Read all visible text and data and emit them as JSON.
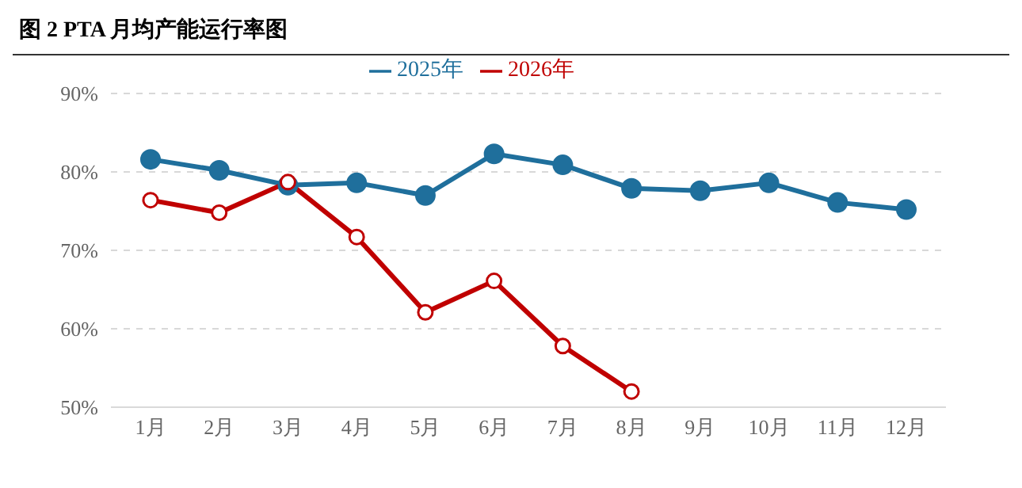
{
  "chart_data": {
    "type": "line",
    "title": "图 2 PTA 月均产能运行率图",
    "categories": [
      "1月",
      "2月",
      "3月",
      "4月",
      "5月",
      "6月",
      "7月",
      "8月",
      "9月",
      "10月",
      "11月",
      "12月"
    ],
    "series": [
      {
        "name": "2025年",
        "color": "#1f6f9c",
        "marker": "circle",
        "values": [
          81.6,
          80.2,
          78.3,
          78.6,
          77.0,
          82.3,
          80.9,
          77.9,
          77.6,
          78.6,
          76.1,
          75.2
        ]
      },
      {
        "name": "2026年",
        "color": "#c00000",
        "marker": "circle",
        "values": [
          76.4,
          74.8,
          78.7,
          71.7,
          62.1,
          66.1,
          57.8,
          52.0,
          null,
          null,
          null,
          null
        ]
      }
    ],
    "ylim": [
      50,
      90
    ],
    "yticks": [
      {
        "value": 50,
        "label": "50%"
      },
      {
        "value": 60,
        "label": "60%"
      },
      {
        "value": 70,
        "label": "70%"
      },
      {
        "value": 80,
        "label": "80%"
      },
      {
        "value": 90,
        "label": "90%"
      }
    ],
    "grid": "y",
    "legend": "top"
  }
}
